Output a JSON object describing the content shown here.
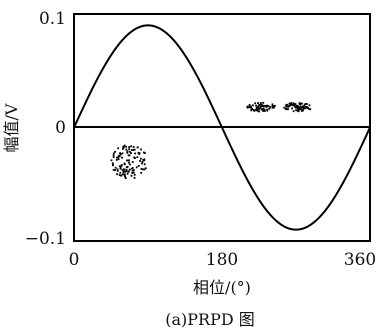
{
  "chart_data": {
    "type": "scatter",
    "title": "",
    "caption": "(a)PRPD 图",
    "xlabel": "相位/(°)",
    "ylabel": "幅值/V",
    "xlim": [
      0,
      360
    ],
    "ylim": [
      -0.1,
      0.1
    ],
    "x_ticks": [
      "0",
      "180",
      "360"
    ],
    "y_ticks": [
      "0.1",
      "0",
      "−0.1"
    ],
    "grid": false,
    "legend": "none",
    "reference_curve": {
      "name": "",
      "amplitude": 0.09,
      "shape": "sine",
      "color": "#000000"
    },
    "zero_line": true,
    "clusters": [
      {
        "x_range": [
          45,
          90
        ],
        "y_range": [
          -0.045,
          -0.015
        ],
        "color": "#000000"
      },
      {
        "x_range": [
          210,
          245
        ],
        "y_range": [
          0.014,
          0.022
        ],
        "color": "#000000"
      },
      {
        "x_range": [
          255,
          290
        ],
        "y_range": [
          0.014,
          0.022
        ],
        "color": "#000000"
      }
    ]
  }
}
